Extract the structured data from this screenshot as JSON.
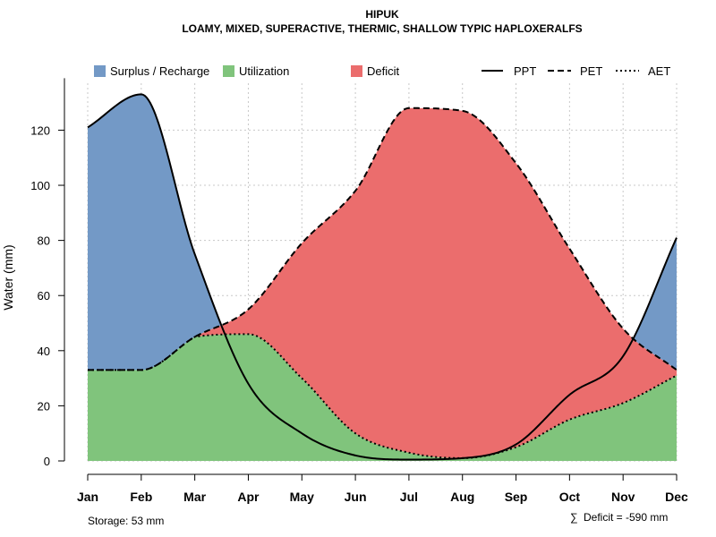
{
  "chart_data": {
    "type": "area",
    "title": "HIPUK",
    "subtitle": "LOAMY, MIXED, SUPERACTIVE, THERMIC, SHALLOW TYPIC HAPLOXERALFS",
    "ylabel": "Water (mm)",
    "xlabel": "",
    "ylim": [
      0,
      138
    ],
    "yticks": [
      0,
      20,
      40,
      60,
      80,
      100,
      120
    ],
    "categories": [
      "Jan",
      "Feb",
      "Mar",
      "Apr",
      "May",
      "Jun",
      "Jul",
      "Aug",
      "Sep",
      "Oct",
      "Nov",
      "Dec"
    ],
    "series": [
      {
        "name": "PPT",
        "style": "solid",
        "values": [
          121,
          133,
          75,
          28,
          10,
          2,
          0.5,
          1,
          6,
          24,
          38,
          81
        ]
      },
      {
        "name": "PET",
        "style": "dashed",
        "values": [
          33,
          33,
          45,
          55,
          79,
          98,
          128,
          127,
          108,
          77,
          48,
          33
        ]
      },
      {
        "name": "AET",
        "style": "dotted",
        "values": [
          33,
          33,
          45,
          46,
          30,
          10,
          3,
          1,
          5,
          15,
          21,
          31
        ]
      }
    ],
    "areas": [
      {
        "name": "Surplus / Recharge",
        "color": "#7399c6",
        "between": [
          "PPT",
          "PET"
        ]
      },
      {
        "name": "Utilization",
        "color": "#80c47c",
        "between": [
          "AET",
          "zero"
        ]
      },
      {
        "name": "Deficit",
        "color": "#eb6d6d",
        "between": [
          "PET",
          "AET"
        ]
      }
    ],
    "legend": {
      "position": "top",
      "fill_items": [
        "Surplus / Recharge",
        "Utilization",
        "Deficit"
      ],
      "line_items": [
        "PPT",
        "PET",
        "AET"
      ]
    },
    "annotations": {
      "storage": "Storage: 53 mm",
      "deficit": "Deficit = -590 mm",
      "deficit_symbol": "∑"
    }
  }
}
